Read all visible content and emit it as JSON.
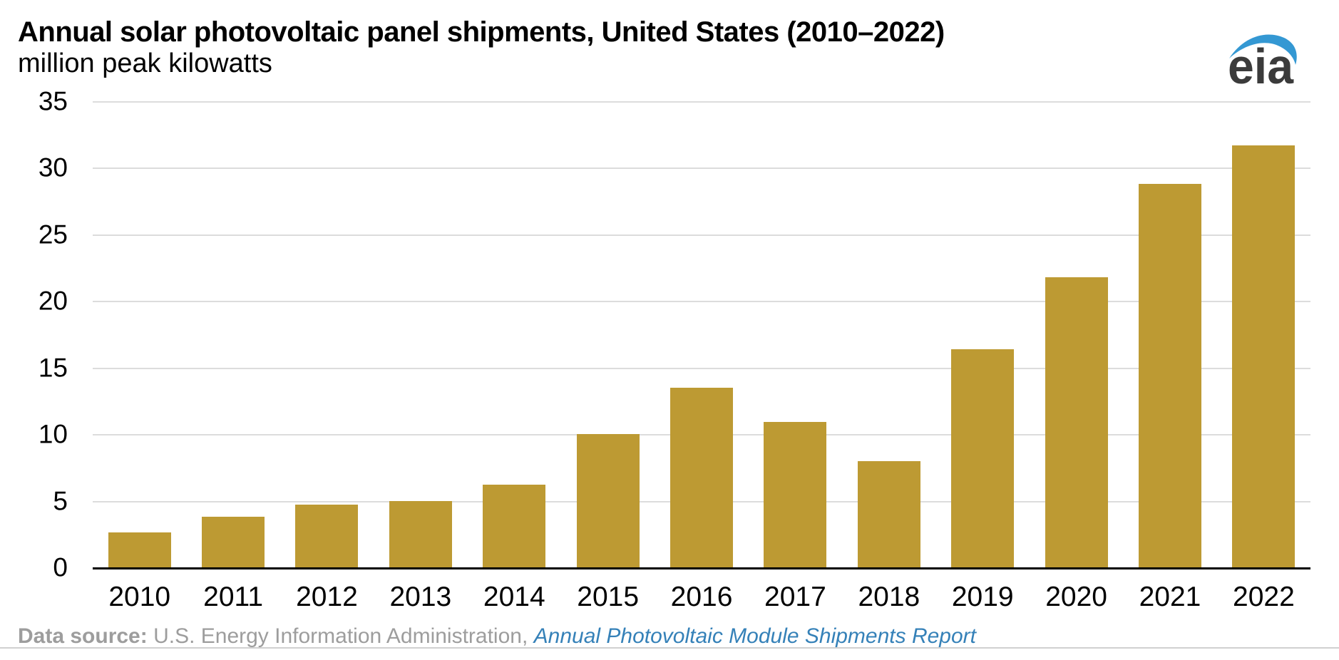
{
  "header": {
    "title": "Annual solar photovoltaic panel shipments, United States (2010–2022)",
    "subtitle": "million peak kilowatts"
  },
  "logo": {
    "text": "eia"
  },
  "chart_data": {
    "type": "bar",
    "title": "Annual solar photovoltaic panel shipments, United States (2010–2022)",
    "xlabel": "",
    "ylabel": "million peak kilowatts",
    "categories": [
      "2010",
      "2011",
      "2012",
      "2013",
      "2014",
      "2015",
      "2016",
      "2017",
      "2018",
      "2019",
      "2020",
      "2021",
      "2022"
    ],
    "values": [
      2.6,
      3.8,
      4.7,
      5.0,
      6.2,
      10.0,
      13.5,
      10.9,
      8.0,
      16.4,
      21.8,
      28.8,
      31.7
    ],
    "ylim": [
      0,
      35
    ],
    "yticks": [
      0,
      5,
      10,
      15,
      20,
      25,
      30,
      35
    ],
    "grid": "horizontal",
    "legend": "none",
    "bar_color": "#bd9a33"
  },
  "footer": {
    "label": "Data source:",
    "text": " U.S. Energy Information Administration, ",
    "link": "Annual Photovoltaic Module Shipments Report"
  },
  "colors": {
    "bar": "#bd9a33",
    "gridline": "#dcdcdc",
    "axis_line": "#000000",
    "footer_text": "#9d9d9d",
    "link": "#3581b8",
    "logo_text": "#3b3b3b",
    "logo_swoosh": "#3498d3"
  }
}
